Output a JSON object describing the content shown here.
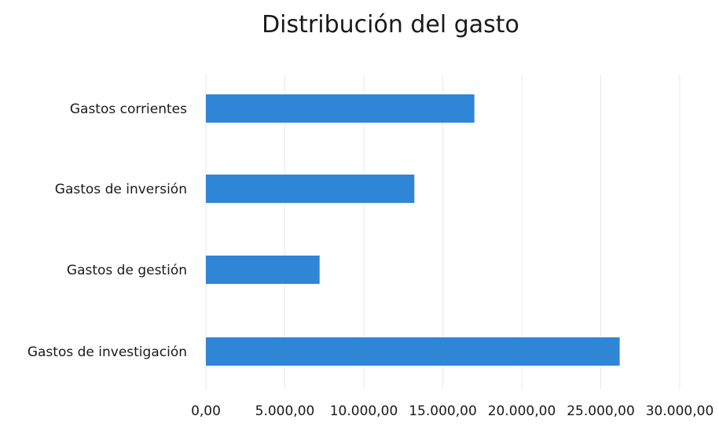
{
  "chart_data": {
    "type": "bar",
    "orientation": "horizontal",
    "title": "Distribución del gasto",
    "xlabel": "",
    "ylabel": "",
    "categories": [
      "Gastos corrientes",
      "Gastos de inversión",
      "Gastos de gestión",
      "Gastos de investigación"
    ],
    "values": [
      17000,
      13200,
      7200,
      26200
    ],
    "xlim": [
      0,
      30000
    ],
    "ticks": [
      0,
      5000,
      10000,
      15000,
      20000,
      25000,
      30000
    ],
    "tick_labels": [
      "0,00",
      "5.000,00",
      "10.000,00",
      "15.000,00",
      "20.000,00",
      "25.000,00",
      "30.000,00"
    ],
    "grid": true,
    "legend": "none",
    "bar_color": "#2F86D6"
  }
}
